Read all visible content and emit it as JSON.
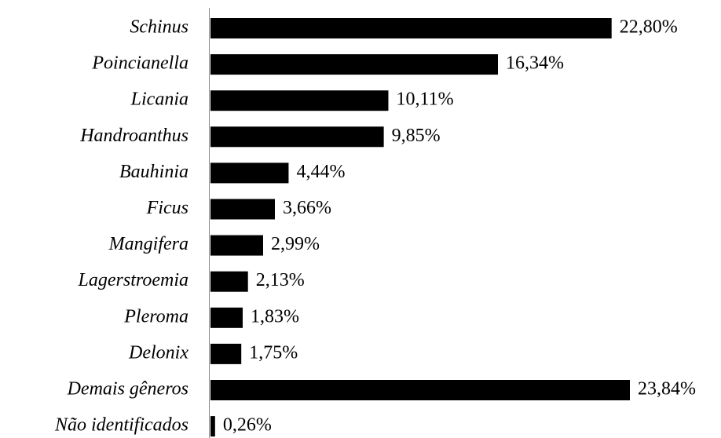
{
  "chart_data": {
    "type": "bar",
    "orientation": "horizontal",
    "categories": [
      "Schinus",
      "Poincianella",
      "Licania",
      "Handroanthus",
      "Bauhinia",
      "Ficus",
      "Mangifera",
      "Lagerstroemia",
      "Pleroma",
      "Delonix",
      "Demais gêneros",
      "Não identificados"
    ],
    "values": [
      22.8,
      16.34,
      10.11,
      9.85,
      4.44,
      3.66,
      2.99,
      2.13,
      1.83,
      1.75,
      23.84,
      0.26
    ],
    "value_labels": [
      "22,80%",
      "16,34%",
      "10,11%",
      "9,85%",
      "4,44%",
      "3,66%",
      "2,99%",
      "2,13%",
      "1,83%",
      "1,75%",
      "23,84%",
      "0,26%"
    ],
    "color": "#000000"
  }
}
